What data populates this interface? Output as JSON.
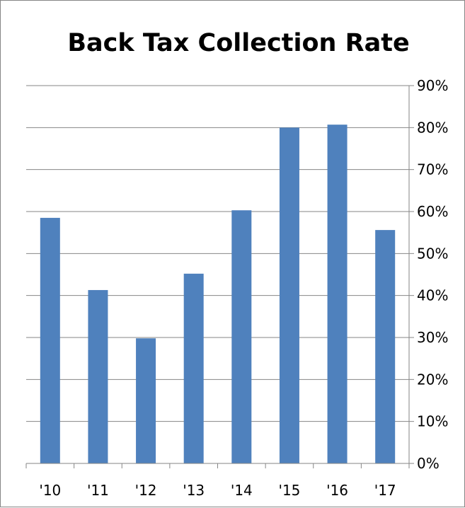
{
  "chart_data": {
    "type": "bar",
    "title": "Back Tax Collection Rate",
    "xlabel": "",
    "ylabel": "",
    "categories": [
      "'10",
      "'11",
      "'12",
      "'13",
      "'14",
      "'15",
      "'16",
      "'17"
    ],
    "values": [
      0.585,
      0.413,
      0.298,
      0.452,
      0.603,
      0.8,
      0.807,
      0.556
    ],
    "ylim": [
      0,
      0.9
    ],
    "y_ticks": [
      0,
      0.1,
      0.2,
      0.3,
      0.4,
      0.5,
      0.6,
      0.7,
      0.8,
      0.9
    ],
    "y_tick_labels": [
      "0%",
      "10%",
      "20%",
      "30%",
      "40%",
      "50%",
      "60%",
      "70%",
      "80%",
      "90%"
    ],
    "y_axis_position": "right",
    "grid": true,
    "legend": "none",
    "bar_color": "#4F81BD",
    "grid_color": "#868686"
  }
}
